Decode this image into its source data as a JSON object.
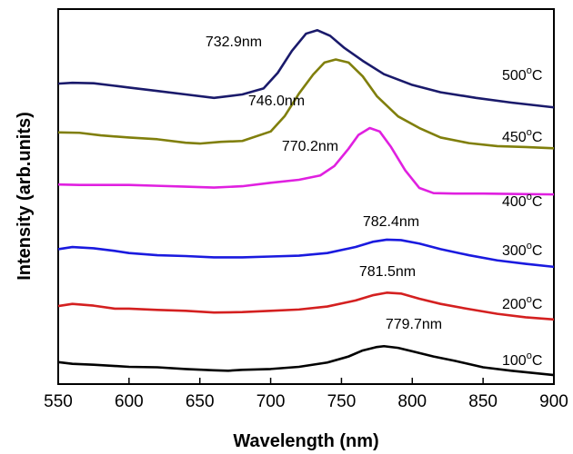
{
  "chart_data": {
    "type": "line",
    "xlabel": "Wavelength (nm)",
    "ylabel": "Intensity (arb.units)",
    "xlim": [
      550,
      900
    ],
    "xticks": [
      550,
      600,
      650,
      700,
      750,
      800,
      850,
      900
    ],
    "y_units": "arbitrary (stacked spectra, no y tick labels)",
    "series": [
      {
        "name": "100°C",
        "temp_value": "100",
        "temp_unit": "C",
        "color": "#000000",
        "peak_label": "779.7nm",
        "peak_wavelength": 779.7,
        "x": [
          550,
          560,
          575,
          590,
          600,
          620,
          640,
          660,
          670,
          680,
          700,
          720,
          740,
          755,
          765,
          775,
          780,
          790,
          800,
          815,
          830,
          850,
          870,
          885,
          900
        ],
        "y": [
          1.55,
          1.35,
          1.25,
          1.1,
          1.0,
          0.95,
          0.75,
          0.6,
          0.55,
          0.65,
          0.75,
          1.0,
          1.5,
          2.2,
          2.9,
          3.3,
          3.4,
          3.2,
          2.8,
          2.2,
          1.7,
          0.95,
          0.55,
          0.3,
          0.05
        ]
      },
      {
        "name": "200°C",
        "temp_value": "200",
        "temp_unit": "C",
        "color": "#d42020",
        "peak_label": "781.5nm",
        "peak_wavelength": 781.5,
        "x": [
          550,
          560,
          575,
          590,
          600,
          620,
          640,
          660,
          680,
          700,
          720,
          740,
          760,
          772,
          782,
          792,
          805,
          820,
          840,
          860,
          880,
          900
        ],
        "y": [
          8.05,
          8.3,
          8.1,
          7.75,
          7.75,
          7.6,
          7.5,
          7.3,
          7.35,
          7.5,
          7.65,
          8.0,
          8.7,
          9.3,
          9.6,
          9.5,
          8.9,
          8.3,
          7.7,
          7.15,
          6.75,
          6.5
        ]
      },
      {
        "name": "300°C",
        "temp_value": "300",
        "temp_unit": "C",
        "color": "#1a1adf",
        "peak_label": "782.4nm",
        "peak_wavelength": 782.4,
        "x": [
          550,
          560,
          575,
          590,
          600,
          620,
          640,
          660,
          680,
          700,
          720,
          740,
          760,
          772,
          782,
          792,
          805,
          820,
          840,
          860,
          880,
          900
        ],
        "y": [
          14.65,
          14.9,
          14.75,
          14.45,
          14.2,
          13.95,
          13.85,
          13.7,
          13.7,
          13.8,
          13.9,
          14.2,
          14.9,
          15.5,
          15.75,
          15.7,
          15.3,
          14.65,
          13.95,
          13.35,
          12.95,
          12.6
        ]
      },
      {
        "name": "400°C",
        "temp_value": "400",
        "temp_unit": "C",
        "color": "#e020e0",
        "peak_label": "770.2nm",
        "peak_wavelength": 770.2,
        "x": [
          550,
          565,
          580,
          600,
          620,
          640,
          660,
          680,
          700,
          720,
          735,
          745,
          755,
          762,
          770,
          777,
          785,
          795,
          805,
          815,
          830,
          850,
          875,
          900
        ],
        "y": [
          22.15,
          22.1,
          22.1,
          22.1,
          22.0,
          21.9,
          21.8,
          21.95,
          22.35,
          22.7,
          23.2,
          24.3,
          26.3,
          27.9,
          28.7,
          28.3,
          26.5,
          23.8,
          21.75,
          21.15,
          21.1,
          21.1,
          21.05,
          21.0
        ]
      },
      {
        "name": "450°C",
        "temp_value": "450",
        "temp_unit": "C",
        "color": "#807f0c",
        "peak_label": "746.0nm",
        "peak_wavelength": 746.0,
        "x": [
          550,
          565,
          580,
          600,
          620,
          640,
          650,
          665,
          680,
          700,
          710,
          720,
          730,
          738,
          746,
          755,
          765,
          775,
          790,
          805,
          820,
          840,
          860,
          880,
          900
        ],
        "y": [
          28.2,
          28.15,
          27.85,
          27.6,
          27.4,
          27.0,
          26.9,
          27.1,
          27.2,
          28.3,
          30.1,
          32.7,
          34.9,
          36.3,
          36.65,
          36.3,
          34.7,
          32.4,
          30.05,
          28.7,
          27.6,
          26.95,
          26.6,
          26.5,
          26.35
        ]
      },
      {
        "name": "500°C",
        "temp_value": "500",
        "temp_unit": "C",
        "color": "#1a1a6b",
        "peak_label": "732.9nm",
        "peak_wavelength": 732.9,
        "x": [
          550,
          560,
          575,
          590,
          600,
          620,
          640,
          660,
          680,
          695,
          705,
          715,
          725,
          733,
          742,
          752,
          765,
          780,
          800,
          820,
          845,
          870,
          900
        ],
        "y": [
          33.85,
          33.95,
          33.9,
          33.6,
          33.4,
          33.0,
          32.6,
          32.2,
          32.6,
          33.3,
          35.1,
          37.65,
          39.65,
          40.05,
          39.4,
          38.0,
          36.5,
          34.95,
          33.7,
          32.85,
          32.2,
          31.65,
          31.1
        ]
      }
    ],
    "ylim": [
      -1,
      42.5
    ]
  }
}
